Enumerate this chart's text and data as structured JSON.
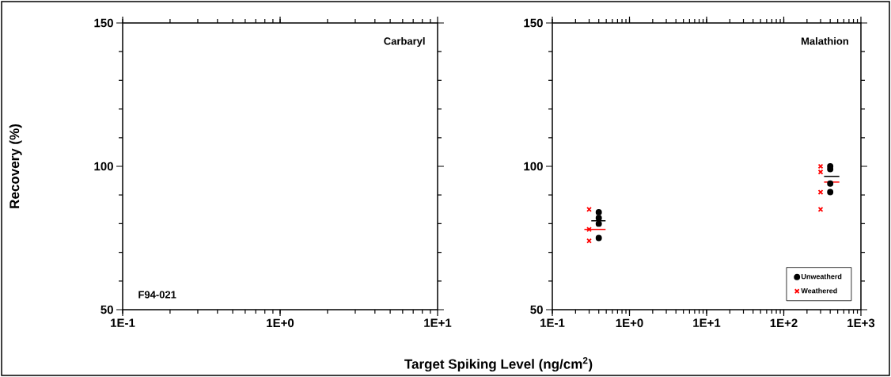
{
  "chart_data": [
    {
      "type": "scatter",
      "annotations": [
        "Carbaryl",
        "F94-021"
      ],
      "xlabel": "Target Spiking Level (ng/cm$^{2}$)",
      "ylabel": "Recovery (%)",
      "log": "x",
      "grid": false,
      "legend": false,
      "xlim": [
        0.1,
        10
      ],
      "xticks": [
        {
          "value": 0.1,
          "label": "1E-1"
        },
        {
          "value": 1,
          "label": "1E+0"
        },
        {
          "value": 10,
          "label": "1E+1"
        }
      ],
      "ylim": [
        50,
        150
      ],
      "yticks": [
        50,
        100,
        150
      ]
    },
    {
      "type": "scatter",
      "annotations": [
        "Malathion"
      ],
      "log": "x",
      "grid": false,
      "legend": "bottom right",
      "xlim": [
        0.1,
        1000
      ],
      "xticks": [
        {
          "value": 0.1,
          "label": "1E-1"
        },
        {
          "value": 1,
          "label": "1E+0"
        },
        {
          "value": 10,
          "label": "1E+1"
        },
        {
          "value": 100,
          "label": "1E+2"
        },
        {
          "value": 1000,
          "label": "1E+3"
        }
      ],
      "ylim": [
        50,
        150
      ],
      "yticks": [
        50,
        100,
        150
      ],
      "series": [
        {
          "name": "Unweatherd",
          "marker": "circle",
          "color": "#000000",
          "x": [
            0.4,
            0.4,
            0.4,
            0.4,
            400,
            400,
            400,
            400
          ],
          "values": [
            84,
            82,
            80,
            75,
            100,
            99,
            94,
            91
          ]
        },
        {
          "name": "Weathered",
          "marker": "cross",
          "color": "#ff0000",
          "x": [
            0.3,
            0.3,
            0.3,
            300,
            300,
            300,
            300
          ],
          "values": [
            85,
            78,
            74,
            100,
            98,
            91,
            85
          ]
        },
        {
          "type": "line",
          "marker": "none",
          "color": "#000000",
          "x": [
            0.32,
            0.49
          ],
          "values": [
            81,
            81
          ]
        },
        {
          "type": "line",
          "marker": "none",
          "color": "#ff0000",
          "x": [
            0.26,
            0.49
          ],
          "values": [
            78,
            78
          ]
        },
        {
          "type": "line",
          "marker": "none",
          "color": "#000000",
          "x": [
            333,
            525
          ],
          "values": [
            96.5,
            96.5
          ]
        },
        {
          "type": "line",
          "marker": "none",
          "color": "#ff0000",
          "x": [
            333,
            525
          ],
          "values": [
            94.5,
            94.5
          ]
        }
      ]
    }
  ]
}
